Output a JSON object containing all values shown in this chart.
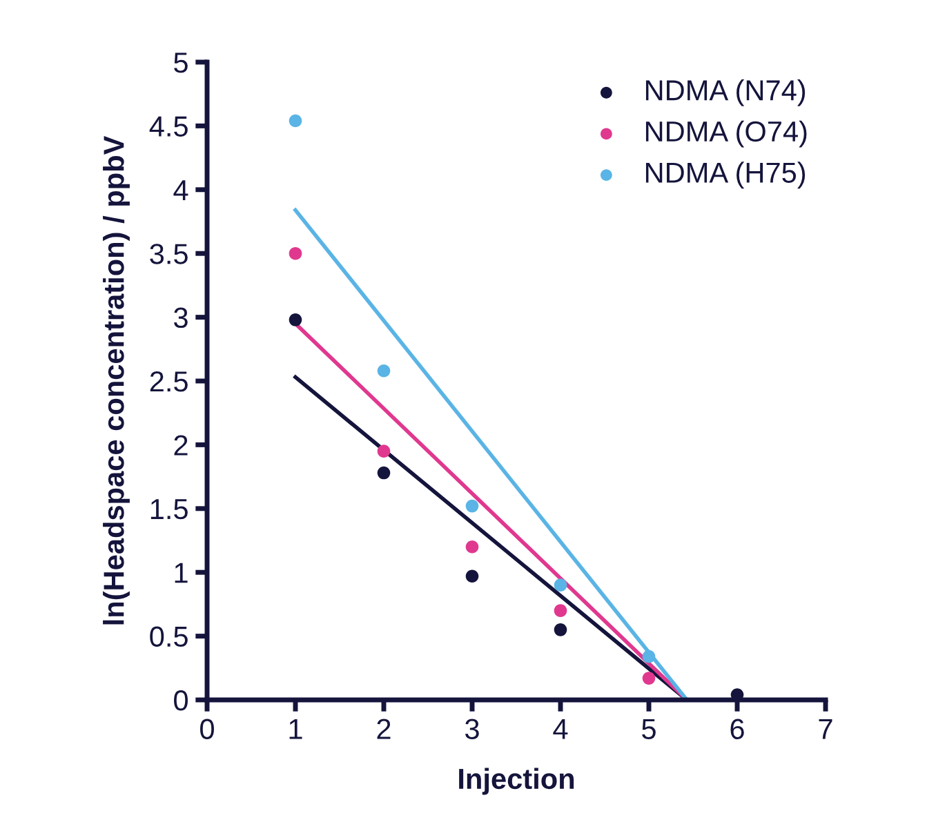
{
  "chart_data": {
    "type": "scatter",
    "xlabel": "Injection",
    "ylabel": "ln(Headspace concentration) / ppbV",
    "xlim": [
      0,
      7
    ],
    "xticks": [
      0,
      1,
      2,
      3,
      4,
      5,
      6,
      7
    ],
    "ylim": [
      0,
      5
    ],
    "yticks": [
      0,
      0.5,
      1,
      1.5,
      2,
      2.5,
      3,
      3.5,
      4,
      4.5,
      5
    ],
    "grid": false,
    "legend": "top right",
    "marker": "circle",
    "series": [
      {
        "name": "NDMA (N74)",
        "color": "#14143c",
        "x": [
          1,
          2,
          3,
          4,
          6
        ],
        "values": [
          2.98,
          1.78,
          0.97,
          0.55,
          0.04
        ]
      },
      {
        "name": "NDMA (O74)",
        "color": "#e0388f",
        "x": [
          1,
          2,
          3,
          4,
          5
        ],
        "values": [
          3.5,
          1.95,
          1.2,
          0.7,
          0.17
        ]
      },
      {
        "name": "NDMA (H75)",
        "color": "#5ab4e5",
        "x": [
          1,
          2,
          3,
          4,
          5
        ],
        "values": [
          4.54,
          2.58,
          1.52,
          0.9,
          0.34
        ]
      },
      {
        "type": "line",
        "marker": "none",
        "color": "#14143c",
        "x": [
          1,
          5.43
        ],
        "values": [
          2.53,
          0
        ]
      },
      {
        "type": "line",
        "marker": "none",
        "color": "#e0388f",
        "x": [
          1,
          5.43
        ],
        "values": [
          2.95,
          0
        ]
      },
      {
        "type": "line",
        "marker": "none",
        "color": "#5ab4e5",
        "x": [
          1,
          5.43
        ],
        "values": [
          3.84,
          0
        ]
      }
    ]
  }
}
